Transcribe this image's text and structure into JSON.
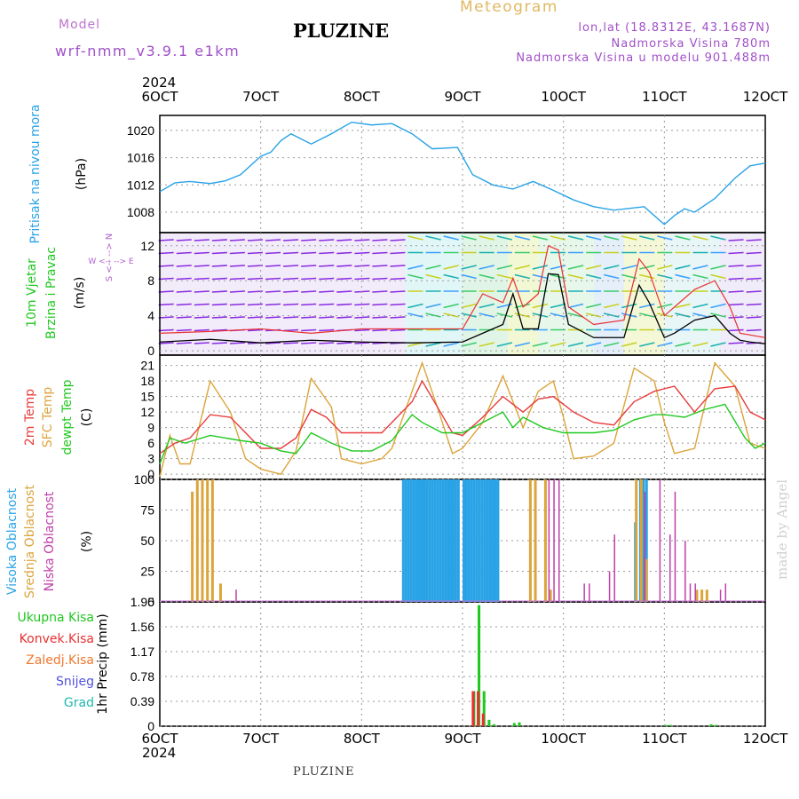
{
  "header": {
    "model_label": "Model",
    "model_name": "wrf-nmm_v3.9.1 e1km",
    "title": "PLUZINE",
    "meteogram": "Meteogram",
    "lonlat": "lon,lat (18.8312E, 43.1687N)",
    "elev": "Nadmorska Visina 780m",
    "elev_model": "Nadmorska Visina u modelu 901.488m"
  },
  "footer": "PLUZINE",
  "credit": "made by Angel",
  "colors": {
    "pressure": "#29a3e6",
    "wind_speed": "#000000",
    "gust": "#e83030",
    "t2m": "#e83c3c",
    "sfc": "#dca43a",
    "dew": "#1ec81e",
    "high": "#29a3e6",
    "mid": "#dca43a",
    "low": "#c03fa8",
    "precip": "#1ec81e",
    "conv": "#e83030"
  },
  "chart_data": [
    {
      "type": "line",
      "panel": "pressure",
      "ylabel": "Pritisak na nivou mora",
      "unit": "(hPa)",
      "year_label": "2024",
      "date_labels": [
        "6OCT",
        "7OCT",
        "8OCT",
        "9OCT",
        "10OCT",
        "11OCT",
        "12OCT"
      ],
      "yticks": [
        1008,
        1012,
        1016,
        1020
      ],
      "ylim": [
        1005,
        1022.2
      ],
      "series": [
        {
          "x": [
            0,
            0.15,
            0.3,
            0.5,
            0.65,
            0.8,
            1.0,
            1.1,
            1.2,
            1.3,
            1.5,
            1.7,
            1.9,
            2.1,
            2.3,
            2.5,
            2.7,
            2.95,
            3.1,
            3.3,
            3.5,
            3.7,
            3.9,
            4.1,
            4.3,
            4.5,
            4.8,
            5.0,
            5.1,
            5.2,
            5.3,
            5.5,
            5.7,
            5.85,
            6.0
          ],
          "values": [
            1011,
            1012.3,
            1012.5,
            1012.2,
            1012.6,
            1013.5,
            1016.2,
            1016.8,
            1018.5,
            1019.5,
            1018,
            1019.5,
            1021.2,
            1020.8,
            1021,
            1019.5,
            1017.3,
            1017.5,
            1013.5,
            1012,
            1011.4,
            1012.5,
            1011.2,
            1009.8,
            1008.8,
            1008.3,
            1008.8,
            1006.2,
            1007.5,
            1008.5,
            1008,
            1010,
            1013,
            1014.8,
            1015.2
          ]
        }
      ]
    },
    {
      "type": "line",
      "panel": "wind",
      "ylabel": [
        "10m Vjetar",
        "Brzina i Pravac"
      ],
      "unit": "(m/s)",
      "compass": [
        "W <-- --> E",
        "S <-- --> N"
      ],
      "yticks": [
        0,
        4,
        8,
        12
      ],
      "ylim": [
        -0.5,
        13.5
      ],
      "series": [
        {
          "name": "speed",
          "x": [
            0,
            0.5,
            1.0,
            1.5,
            2.0,
            2.5,
            3.0,
            3.2,
            3.4,
            3.5,
            3.6,
            3.75,
            3.85,
            3.95,
            4.05,
            4.3,
            4.6,
            4.75,
            4.85,
            5.0,
            5.1,
            5.3,
            5.5,
            5.65,
            5.75,
            5.85,
            6.0
          ],
          "values": [
            1,
            1.3,
            0.9,
            1.2,
            1,
            0.9,
            1,
            2,
            3,
            6.5,
            2.5,
            2.5,
            8.8,
            8.7,
            3,
            1.5,
            1.5,
            7.5,
            5.5,
            1.5,
            2,
            3.5,
            4,
            2,
            1.2,
            1,
            0.8
          ]
        },
        {
          "name": "gust",
          "x": [
            0,
            0.5,
            1.0,
            1.5,
            2.0,
            2.5,
            3.0,
            3.2,
            3.4,
            3.5,
            3.6,
            3.75,
            3.85,
            3.95,
            4.05,
            4.3,
            4.6,
            4.75,
            4.85,
            5.0,
            5.1,
            5.3,
            5.5,
            5.65,
            5.75,
            5.85,
            6.0
          ],
          "values": [
            2,
            2.2,
            2.5,
            2,
            2.5,
            2.5,
            2.5,
            6.5,
            5.5,
            8.3,
            5,
            6.5,
            12,
            11.5,
            5,
            3,
            3.5,
            10.5,
            9,
            4,
            5,
            7,
            8,
            5,
            2,
            1.8,
            1.5
          ]
        }
      ]
    },
    {
      "type": "line",
      "panel": "temperature",
      "ylabel": [
        "2m Temp",
        "SFC Temp",
        "dewpt Temp"
      ],
      "unit": "(C)",
      "yticks": [
        0,
        3,
        6,
        9,
        12,
        15,
        18,
        21
      ],
      "ylim": [
        -1,
        23
      ],
      "series": [
        {
          "name": "2m Temp",
          "x": [
            0,
            0.15,
            0.3,
            0.5,
            0.7,
            0.85,
            1.0,
            1.2,
            1.35,
            1.5,
            1.65,
            1.8,
            2.0,
            2.2,
            2.5,
            2.6,
            2.75,
            2.9,
            3.0,
            3.2,
            3.4,
            3.6,
            3.75,
            3.9,
            4.1,
            4.3,
            4.5,
            4.7,
            4.9,
            5.1,
            5.3,
            5.5,
            5.7,
            5.85,
            6.0
          ],
          "values": [
            4,
            6,
            7,
            11.5,
            11,
            8,
            5,
            5,
            7,
            12.5,
            11,
            8,
            8,
            8,
            14,
            18,
            13,
            8,
            7.5,
            11,
            15,
            12,
            14.5,
            15,
            12,
            10,
            9.5,
            14,
            16,
            17,
            12,
            16.5,
            17,
            12,
            10.5
          ]
        },
        {
          "name": "SFC Temp",
          "x": [
            0,
            0.1,
            0.2,
            0.3,
            0.5,
            0.7,
            0.85,
            1.0,
            1.2,
            1.35,
            1.5,
            1.7,
            1.8,
            2.0,
            2.2,
            2.3,
            2.6,
            2.75,
            2.9,
            3.0,
            3.2,
            3.4,
            3.6,
            3.75,
            3.9,
            4.0,
            4.1,
            4.3,
            4.5,
            4.7,
            4.9,
            5.0,
            5.1,
            5.3,
            5.5,
            5.7,
            5.85,
            6.0
          ],
          "values": [
            -0.5,
            7.5,
            2,
            2,
            18,
            12,
            3,
            1,
            0,
            4.5,
            18.5,
            13,
            3,
            2,
            3,
            5,
            21.5,
            13,
            4,
            5,
            10,
            19,
            9,
            16,
            18,
            11,
            3,
            3.5,
            6,
            20.5,
            18,
            10,
            4,
            5,
            21.5,
            17,
            6,
            5
          ]
        },
        {
          "name": "dewpt Temp",
          "x": [
            0,
            0.1,
            0.25,
            0.5,
            0.8,
            1.0,
            1.2,
            1.35,
            1.5,
            1.7,
            1.9,
            2.1,
            2.3,
            2.5,
            2.6,
            2.8,
            3.0,
            3.2,
            3.4,
            3.5,
            3.6,
            3.8,
            4.0,
            4.1,
            4.3,
            4.5,
            4.7,
            4.9,
            5.0,
            5.2,
            5.4,
            5.6,
            5.8,
            5.9,
            6.0
          ],
          "values": [
            2,
            7,
            6,
            7.5,
            6.5,
            6,
            4.5,
            4,
            8,
            6,
            4.5,
            4.5,
            6.5,
            11.5,
            10,
            8,
            8,
            10,
            12,
            9,
            11,
            9,
            8,
            8,
            8,
            8.5,
            10.5,
            11.5,
            11.5,
            11,
            12.5,
            13.5,
            7,
            5,
            6
          ]
        }
      ]
    },
    {
      "type": "bar",
      "panel": "cloud",
      "ylabel": [
        "Visoka Oblacnost",
        "Srednja Oblacnost",
        "Niska Oblacnost"
      ],
      "unit": "(%)",
      "yticks": [
        0,
        25,
        50,
        75,
        100
      ],
      "ylim": [
        0,
        100
      ],
      "series": [
        {
          "name": "Visoka",
          "x": [
            3.7,
            3.73,
            3.76,
            3.79,
            3.82,
            3.85,
            3.88,
            3.91,
            3.94,
            3.97,
            4.0,
            4.03,
            4.06,
            4.09,
            4.12,
            4.15,
            4.18,
            4.21,
            4.24,
            4.27,
            4.3,
            4.33,
            4.36,
            4.39,
            4.42,
            4.45,
            4.48,
            4.51,
            4.54,
            4.57,
            4.6,
            4.63,
            4.66,
            4.69,
            4.72,
            4.75,
            4.78,
            4.81,
            4.84,
            4.87,
            4.9,
            4.93,
            4.96,
            4.99,
            5.02,
            5.05,
            5.08,
            5.11,
            5.14,
            5.17,
            5.2,
            5.23,
            5.26,
            5.29,
            5.32,
            5.35,
            5.38,
            5.41,
            5.44,
            5.47,
            5.5,
            5.53,
            5.56,
            5.59,
            5.62,
            5.65,
            5.68,
            5.71,
            5.74,
            5.77,
            5.8,
            5.83,
            5.86,
            5.89,
            5.92,
            5.95,
            5.98,
            4.7,
            4.75,
            4.78,
            4.81
          ],
          "values": [
            0,
            0,
            0,
            0,
            0,
            0,
            0,
            0,
            0,
            0,
            0,
            0,
            0,
            0,
            0,
            0,
            0,
            0,
            0,
            0,
            0,
            0,
            0,
            0,
            0,
            0,
            0,
            0,
            0,
            0,
            0,
            0,
            0,
            0,
            0,
            0,
            0,
            0,
            0,
            0,
            0,
            0,
            0,
            0,
            0,
            0,
            0,
            0,
            0,
            0,
            0,
            0,
            0,
            0,
            0,
            0,
            0,
            0,
            0,
            0,
            0,
            0,
            0,
            0,
            0,
            0,
            0,
            0,
            0,
            0,
            0,
            0,
            0,
            0,
            0,
            0,
            0,
            65,
            100,
            100,
            100
          ]
        },
        {
          "name": "Srednja",
          "x": [
            0.3,
            0.35,
            0.4,
            0.45,
            0.5,
            0.58,
            1.05,
            2.8,
            3.2,
            3.65,
            3.7,
            3.8,
            3.85,
            4.05,
            4.12,
            4.18,
            4.6,
            4.7,
            4.75,
            4.8,
            5.3,
            5.35,
            5.4
          ],
          "values": [
            90,
            100,
            100,
            100,
            100,
            15,
            0,
            0,
            0,
            100,
            100,
            100,
            10,
            0,
            0,
            0,
            0,
            100,
            100,
            35,
            10,
            10,
            10
          ]
        },
        {
          "name": "Niska",
          "x": [
            0.75,
            3.85,
            3.9,
            3.95,
            4.2,
            4.25,
            4.45,
            4.5,
            4.8,
            4.95,
            5.05,
            5.1,
            5.2,
            5.25,
            5.3,
            5.55,
            5.6
          ],
          "values": [
            10,
            100,
            100,
            100,
            15,
            15,
            25,
            55,
            90,
            100,
            55,
            90,
            50,
            15,
            15,
            10,
            15
          ]
        }
      ],
      "high_blocks": [
        [
          2.4,
          2.95
        ],
        [
          3.0,
          3.35
        ]
      ]
    },
    {
      "type": "bar",
      "panel": "precip",
      "ylabel": "1hr Precip (mm)",
      "legend": [
        "Ukupna Kisa",
        "Konvek.Kisa",
        "Zaledj.Kisa",
        "Snijeg",
        "Grad"
      ],
      "yticks": [
        0,
        0.39,
        0.78,
        1.17,
        1.56,
        1.95
      ],
      "ylim": [
        0,
        1.95
      ],
      "series": [
        {
          "name": "Ukupna Kisa",
          "x": [
            3.1,
            3.15,
            3.2,
            3.25,
            3.3,
            3.5,
            3.55,
            5.0,
            5.05,
            5.45,
            5.5
          ],
          "values": [
            0.55,
            1.9,
            0.55,
            0.1,
            0.03,
            0.05,
            0.06,
            0.02,
            0.02,
            0.03,
            0.02
          ]
        },
        {
          "name": "Konvek.Kisa",
          "x": [
            3.1,
            3.15,
            3.2
          ],
          "values": [
            0.55,
            0.55,
            0.2
          ]
        }
      ]
    }
  ]
}
